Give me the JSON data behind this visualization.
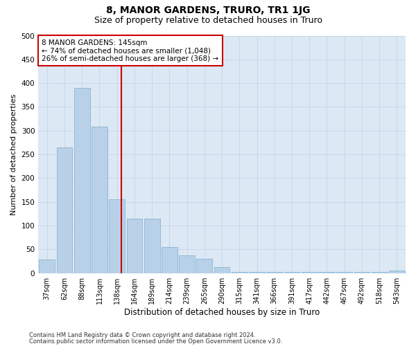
{
  "title": "8, MANOR GARDENS, TRURO, TR1 1JG",
  "subtitle": "Size of property relative to detached houses in Truro",
  "xlabel": "Distribution of detached houses by size in Truro",
  "ylabel": "Number of detached properties",
  "categories": [
    "37sqm",
    "62sqm",
    "88sqm",
    "113sqm",
    "138sqm",
    "164sqm",
    "189sqm",
    "214sqm",
    "239sqm",
    "265sqm",
    "290sqm",
    "315sqm",
    "341sqm",
    "366sqm",
    "391sqm",
    "417sqm",
    "442sqm",
    "467sqm",
    "492sqm",
    "518sqm",
    "543sqm"
  ],
  "values": [
    28,
    265,
    390,
    308,
    155,
    115,
    115,
    55,
    38,
    30,
    12,
    3,
    3,
    3,
    3,
    3,
    3,
    3,
    3,
    3,
    5
  ],
  "bar_color": "#b8d0e8",
  "bar_edge_color": "#7aafcf",
  "vline_color": "#cc0000",
  "vline_x": 4.25,
  "annotation_lines": [
    "8 MANOR GARDENS: 145sqm",
    "← 74% of detached houses are smaller (1,048)",
    "26% of semi-detached houses are larger (368) →"
  ],
  "annotation_box_color": "#cc0000",
  "ylim": [
    0,
    500
  ],
  "yticks": [
    0,
    50,
    100,
    150,
    200,
    250,
    300,
    350,
    400,
    450,
    500
  ],
  "footer_line1": "Contains HM Land Registry data © Crown copyright and database right 2024.",
  "footer_line2": "Contains public sector information licensed under the Open Government Licence v3.0.",
  "grid_color": "#c8d8ea",
  "bg_color": "#dce8f4",
  "title_fontsize": 10,
  "subtitle_fontsize": 9,
  "fig_width": 6.0,
  "fig_height": 5.0
}
